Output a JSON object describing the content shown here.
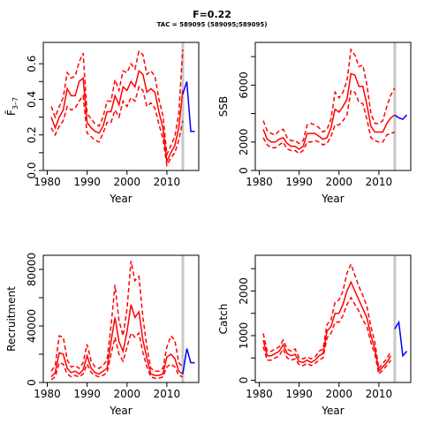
{
  "header": {
    "title": "F=0.22",
    "subtitle": "TAC = 589095 (589095;589095)"
  },
  "chart_data": [
    {
      "type": "line",
      "id": "fbar",
      "ylabel": "F̄",
      "ylabel_sub": "3–7",
      "xlabel": "Year",
      "xlim": [
        1979,
        2018
      ],
      "ylim": [
        0,
        0.72
      ],
      "x_ticks": [
        1980,
        1990,
        2000,
        2010
      ],
      "y_ticks": [
        0.0,
        0.2,
        0.4,
        0.6
      ],
      "y_tick_labels": [
        "0.0",
        "0.2",
        "0.4",
        "0.6"
      ],
      "y_minor_ticks": [
        0.1,
        0.3,
        0.5
      ],
      "vline": 2014,
      "historical": {
        "x": [
          1981,
          1982,
          1983,
          1984,
          1985,
          1986,
          1987,
          1988,
          1989,
          1990,
          1991,
          1992,
          1993,
          1994,
          1995,
          1996,
          1997,
          1998,
          1999,
          2000,
          2001,
          2002,
          2003,
          2004,
          2005,
          2006,
          2007,
          2008,
          2009,
          2010,
          2011,
          2012,
          2013,
          2014
        ],
        "estimate": [
          0.3,
          0.24,
          0.3,
          0.34,
          0.46,
          0.42,
          0.42,
          0.5,
          0.52,
          0.27,
          0.24,
          0.22,
          0.21,
          0.25,
          0.33,
          0.33,
          0.42,
          0.37,
          0.47,
          0.45,
          0.5,
          0.47,
          0.56,
          0.54,
          0.44,
          0.46,
          0.44,
          0.33,
          0.24,
          0.05,
          0.1,
          0.14,
          0.24,
          0.45
        ],
        "upper": [
          0.36,
          0.3,
          0.36,
          0.41,
          0.55,
          0.52,
          0.53,
          0.61,
          0.66,
          0.32,
          0.29,
          0.26,
          0.25,
          0.3,
          0.39,
          0.39,
          0.51,
          0.45,
          0.56,
          0.55,
          0.6,
          0.57,
          0.67,
          0.65,
          0.54,
          0.56,
          0.53,
          0.4,
          0.31,
          0.09,
          0.14,
          0.19,
          0.32,
          0.68
        ],
        "lower": [
          0.24,
          0.2,
          0.25,
          0.28,
          0.36,
          0.34,
          0.35,
          0.39,
          0.42,
          0.21,
          0.19,
          0.17,
          0.16,
          0.21,
          0.27,
          0.27,
          0.34,
          0.3,
          0.39,
          0.36,
          0.41,
          0.39,
          0.47,
          0.45,
          0.36,
          0.38,
          0.35,
          0.26,
          0.18,
          0.03,
          0.07,
          0.1,
          0.17,
          0.28
        ]
      },
      "projection": {
        "x": [
          2014,
          2015,
          2016,
          2017
        ],
        "values": [
          0.43,
          0.5,
          0.22,
          0.22
        ]
      }
    },
    {
      "type": "line",
      "id": "ssb",
      "ylabel": "SSB",
      "xlabel": "Year",
      "xlim": [
        1979,
        2018
      ],
      "ylim": [
        0,
        9000
      ],
      "x_ticks": [
        1980,
        1990,
        2000,
        2010
      ],
      "y_ticks": [
        0,
        2000,
        6000
      ],
      "y_tick_labels": [
        "0",
        "2000",
        "6000"
      ],
      "y_minor_ticks": [
        4000,
        8000
      ],
      "vline": 2014,
      "historical": {
        "x": [
          1981,
          1982,
          1983,
          1984,
          1985,
          1986,
          1987,
          1988,
          1989,
          1990,
          1991,
          1992,
          1993,
          1994,
          1995,
          1996,
          1997,
          1998,
          1999,
          2000,
          2001,
          2002,
          2003,
          2004,
          2005,
          2006,
          2007,
          2008,
          2009,
          2010,
          2011,
          2012,
          2013,
          2014
        ],
        "estimate": [
          2900,
          2200,
          2000,
          2000,
          2200,
          2300,
          1900,
          1700,
          1700,
          1500,
          1700,
          2600,
          2600,
          2600,
          2400,
          2200,
          2300,
          3000,
          4300,
          4100,
          4500,
          5000,
          6800,
          6700,
          5900,
          5900,
          4600,
          3100,
          2700,
          2700,
          2700,
          3300,
          3700,
          3900
        ],
        "upper": [
          3500,
          2800,
          2600,
          2500,
          2800,
          2900,
          2300,
          2100,
          2100,
          1900,
          2100,
          3200,
          3300,
          3200,
          3000,
          2700,
          2900,
          3600,
          5500,
          5100,
          5500,
          6300,
          8500,
          8100,
          7300,
          7400,
          6000,
          4000,
          3300,
          3300,
          3500,
          4500,
          5300,
          5800
        ],
        "lower": [
          2300,
          1800,
          1600,
          1600,
          1800,
          2000,
          1500,
          1400,
          1400,
          1200,
          1400,
          2000,
          2000,
          2100,
          2000,
          1800,
          1900,
          2400,
          3200,
          3200,
          3500,
          3900,
          5600,
          5500,
          4800,
          4700,
          3600,
          2300,
          2100,
          2000,
          2000,
          2500,
          2600,
          2700
        ]
      },
      "projection": {
        "x": [
          2014,
          2015,
          2016,
          2017
        ],
        "values": [
          3900,
          3700,
          3600,
          3900
        ]
      }
    },
    {
      "type": "line",
      "id": "recruitment",
      "ylabel": "Recruitment",
      "xlabel": "Year",
      "xlim": [
        1979,
        2018
      ],
      "ylim": [
        0,
        90000
      ],
      "x_ticks": [
        1980,
        1990,
        2000,
        2010
      ],
      "y_ticks": [
        0,
        40000,
        80000
      ],
      "y_tick_labels": [
        "0",
        "40000",
        "80000"
      ],
      "y_minor_ticks": [
        20000,
        60000
      ],
      "vline": 2014,
      "historical": {
        "x": [
          1981,
          1982,
          1983,
          1984,
          1985,
          1986,
          1987,
          1988,
          1989,
          1990,
          1991,
          1992,
          1993,
          1994,
          1995,
          1996,
          1997,
          1998,
          1999,
          2000,
          2001,
          2002,
          2003,
          2004,
          2005,
          2006,
          2007,
          2008,
          2009,
          2010,
          2011,
          2012,
          2013,
          2014
        ],
        "estimate": [
          4000,
          7000,
          21000,
          20000,
          10000,
          7000,
          8000,
          6000,
          9000,
          19000,
          10000,
          7000,
          6000,
          8000,
          10000,
          29000,
          46000,
          29000,
          22000,
          36000,
          55000,
          46000,
          50000,
          30000,
          17000,
          6000,
          5000,
          5000,
          6000,
          18000,
          20000,
          17000,
          8000,
          6000
        ],
        "upper": [
          8000,
          12000,
          33000,
          32000,
          16000,
          11000,
          12000,
          10000,
          14000,
          27000,
          15000,
          11000,
          10000,
          12000,
          16000,
          40000,
          69000,
          44000,
          33000,
          52000,
          86000,
          72000,
          75000,
          46000,
          25000,
          10000,
          8000,
          8000,
          10000,
          25000,
          33000,
          30000,
          14000,
          11000
        ],
        "lower": [
          2000,
          4000,
          14000,
          13000,
          6000,
          4000,
          5000,
          4000,
          6000,
          13000,
          7000,
          5000,
          4000,
          5000,
          7000,
          20000,
          32000,
          20000,
          15000,
          25000,
          35000,
          32000,
          35000,
          21000,
          11000,
          4000,
          3000,
          3000,
          4000,
          11000,
          13000,
          11000,
          5000,
          4000
        ]
      },
      "projection": {
        "x": [
          2014,
          2015,
          2016,
          2017
        ],
        "values": [
          6000,
          24000,
          14000,
          14000
        ]
      }
    },
    {
      "type": "line",
      "id": "catch",
      "ylabel": "Catch",
      "xlabel": "Year",
      "xlim": [
        1979,
        2018
      ],
      "ylim": [
        -50,
        2800
      ],
      "x_ticks": [
        1980,
        1990,
        2000,
        2010
      ],
      "y_ticks": [
        0,
        1000,
        2000
      ],
      "y_tick_labels": [
        "0",
        "1000",
        "2000"
      ],
      "y_minor_ticks": [
        500,
        1500,
        2500
      ],
      "vline": 2014,
      "historical": {
        "x": [
          1981,
          1982,
          1983,
          1984,
          1985,
          1986,
          1987,
          1988,
          1989,
          1990,
          1991,
          1992,
          1993,
          1994,
          1995,
          1996,
          1997,
          1998,
          1999,
          2000,
          2001,
          2002,
          2003,
          2004,
          2005,
          2006,
          2007,
          2008,
          2009,
          2010,
          2011,
          2012,
          2013
        ],
        "estimate": [
          900,
          550,
          550,
          600,
          650,
          800,
          600,
          550,
          580,
          420,
          400,
          450,
          400,
          450,
          550,
          600,
          1100,
          1200,
          1500,
          1500,
          1700,
          2000,
          2200,
          2000,
          1800,
          1600,
          1400,
          1000,
          700,
          200,
          300,
          400,
          550
        ],
        "upper": [
          1050,
          650,
          650,
          700,
          750,
          900,
          700,
          650,
          700,
          500,
          480,
          520,
          480,
          520,
          650,
          700,
          1250,
          1350,
          1750,
          1800,
          2000,
          2400,
          2600,
          2350,
          2100,
          1900,
          1650,
          1200,
          850,
          260,
          380,
          480,
          650
        ],
        "lower": [
          750,
          450,
          450,
          500,
          550,
          700,
          500,
          450,
          480,
          350,
          330,
          380,
          330,
          380,
          450,
          500,
          950,
          1050,
          1300,
          1300,
          1450,
          1700,
          1850,
          1700,
          1550,
          1350,
          1200,
          850,
          580,
          140,
          230,
          330,
          450
        ]
      },
      "projection": {
        "x": [
          2014,
          2015,
          2016,
          2017
        ],
        "values": [
          1150,
          1300,
          550,
          650
        ]
      }
    }
  ]
}
